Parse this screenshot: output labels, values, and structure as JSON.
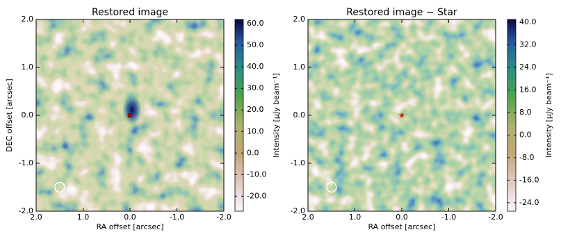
{
  "chart_data": [
    {
      "type": "image",
      "title": "Restored image",
      "xlabel": "RA offset [arcsec]",
      "ylabel": "DEC offset [arcsec]",
      "xlim": [
        2,
        -2
      ],
      "ylim": [
        -2,
        2
      ],
      "xticks": [
        {
          "value": 2,
          "label": "2.0"
        },
        {
          "value": 1,
          "label": "1.0"
        },
        {
          "value": 0,
          "label": "0.0"
        },
        {
          "value": -1,
          "label": "-1.0"
        },
        {
          "value": -2,
          "label": "-2.0"
        }
      ],
      "yticks": [
        {
          "value": -2,
          "label": "-2.0"
        },
        {
          "value": -1,
          "label": "-1.0"
        },
        {
          "value": 0,
          "label": "0.0"
        },
        {
          "value": 1,
          "label": "1.0"
        },
        {
          "value": 2,
          "label": "2.0"
        }
      ],
      "colorbar_label": "Intensity [μJy beam⁻¹]",
      "clim": [
        -27,
        62
      ],
      "cticks": [
        {
          "value": -20,
          "label": "-20.0"
        },
        {
          "value": -10,
          "label": "-10.0"
        },
        {
          "value": 0,
          "label": "0.0"
        },
        {
          "value": 10,
          "label": "10.0"
        },
        {
          "value": 20,
          "label": "20.0"
        },
        {
          "value": 30,
          "label": "30.0"
        },
        {
          "value": 40,
          "label": "40.0"
        },
        {
          "value": 50,
          "label": "50.0"
        },
        {
          "value": 60,
          "label": "60.0"
        }
      ],
      "star": {
        "x": 0,
        "y": 0,
        "marker": "dot",
        "color": "#cc0000"
      },
      "beam": {
        "x": 1.5,
        "y": -1.5
      }
    },
    {
      "type": "image",
      "title": "Restored image − Star",
      "xlabel": "RA offset [arcsec]",
      "xlim": [
        2,
        -2
      ],
      "ylim": [
        -2,
        2
      ],
      "xticks": [
        {
          "value": 2,
          "label": "2.0"
        },
        {
          "value": 1,
          "label": "1.0"
        },
        {
          "value": 0,
          "label": "0.0"
        },
        {
          "value": -1,
          "label": "-1.0"
        },
        {
          "value": -2,
          "label": "-2.0"
        }
      ],
      "yticks": [
        {
          "value": -2,
          "label": "-2.0"
        },
        {
          "value": -1,
          "label": "-1.0"
        },
        {
          "value": 0,
          "label": "0.0"
        },
        {
          "value": 1,
          "label": "1.0"
        },
        {
          "value": 2,
          "label": "2.0"
        }
      ],
      "colorbar_label": "Intensity [μJy beam⁻¹]",
      "clim": [
        -27,
        41
      ],
      "cticks": [
        {
          "value": -24,
          "label": "-24.0"
        },
        {
          "value": -16,
          "label": "-16.0"
        },
        {
          "value": -8,
          "label": "-8.0"
        },
        {
          "value": 0,
          "label": "0.0"
        },
        {
          "value": 8,
          "label": "8.0"
        },
        {
          "value": 16,
          "label": "16.0"
        },
        {
          "value": 24,
          "label": "24.0"
        },
        {
          "value": 32,
          "label": "32.0"
        },
        {
          "value": 40,
          "label": "40.0"
        }
      ],
      "star": {
        "x": 0,
        "y": 0,
        "marker": "star",
        "color": "#cc2200"
      },
      "beam": {
        "x": 1.5,
        "y": -1.5
      }
    }
  ]
}
